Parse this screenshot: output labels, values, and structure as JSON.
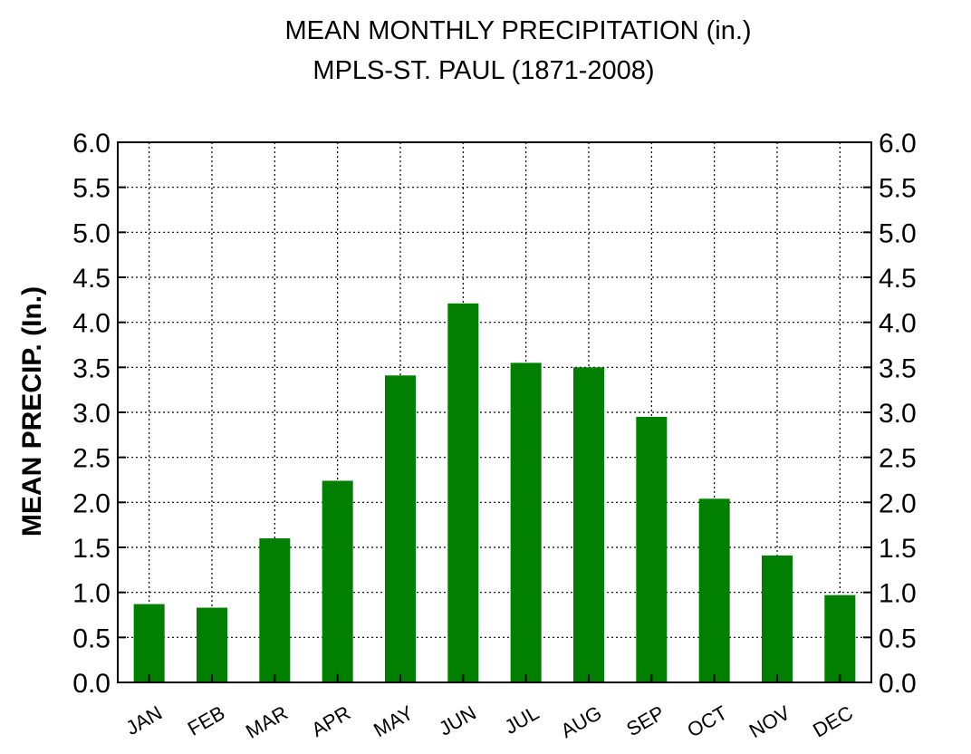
{
  "chart_data": {
    "type": "bar",
    "title": "MEAN MONTHLY PRECIPITATION (in.)",
    "subtitle": "MPLS-ST. PAUL (1871-2008)",
    "ylabel": "MEAN PRECIP. (In.)",
    "xlabel": "",
    "categories": [
      "JAN",
      "FEB",
      "MAR",
      "APR",
      "MAY",
      "JUN",
      "JUL",
      "AUG",
      "SEP",
      "OCT",
      "NOV",
      "DEC"
    ],
    "series": [
      {
        "values": [
          0.87,
          0.83,
          1.6,
          2.24,
          3.41,
          4.21,
          3.55,
          3.5,
          2.95,
          2.04,
          1.41,
          0.97
        ]
      }
    ],
    "ylim": [
      0,
      6.0
    ],
    "yticks": [
      "0.0",
      "0.5",
      "1.0",
      "1.5",
      "2.0",
      "2.5",
      "3.0",
      "3.5",
      "4.0",
      "4.5",
      "5.0",
      "5.5",
      "6.0"
    ],
    "grid": true,
    "right_axis": true,
    "bar_color": "#007f00"
  }
}
